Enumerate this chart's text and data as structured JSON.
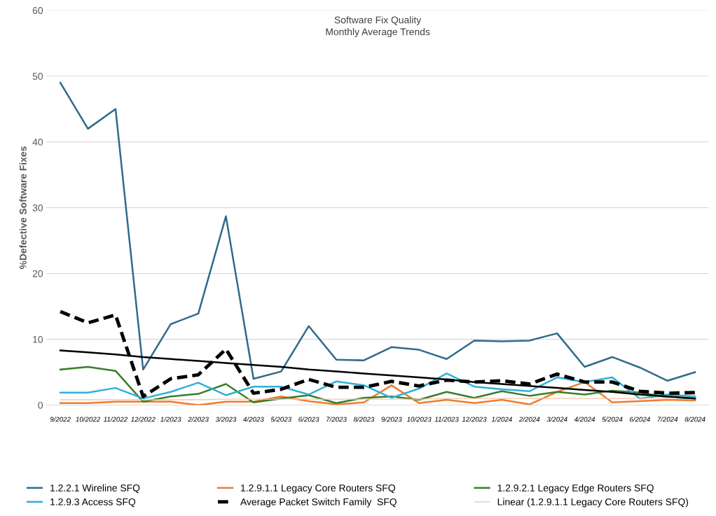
{
  "chart_data": {
    "type": "line",
    "title": "Software Fix Quality",
    "subtitle": "Monthly Average Trends",
    "ylabel": "%Defective Software Fixes",
    "categories": [
      "9/2022",
      "10/2022",
      "11/2022",
      "12/2022",
      "1/2023",
      "2/2023",
      "3/2023",
      "4/2023",
      "5/2023",
      "6/2023",
      "7/2023",
      "8/2023",
      "9/2023",
      "10/2023",
      "11/2023",
      "12/2023",
      "1/2024",
      "2/2024",
      "3/2024",
      "4/2024",
      "5/2024",
      "6/2024",
      "7/2024",
      "8/2024"
    ],
    "ylim": [
      0,
      60
    ],
    "yticks": [
      0,
      10,
      20,
      30,
      40,
      50,
      60
    ],
    "grid": "y",
    "legend": "bottom",
    "series": [
      {
        "name": "1.2.2.1 Wireline SFQ",
        "color": "#2e6b8a",
        "values": [
          49,
          42,
          45,
          5.4,
          12.3,
          13.9,
          28.7,
          4.0,
          5.1,
          12.0,
          6.9,
          6.8,
          8.8,
          8.4,
          7.0,
          9.8,
          9.7,
          9.8,
          10.9,
          5.8,
          7.3,
          5.7,
          3.7,
          5.0
        ]
      },
      {
        "name": "1.2.9.1.1 Legacy Core Routers SFQ",
        "color": "#ed7d31",
        "values": [
          0.3,
          0.3,
          0.5,
          0.5,
          0.5,
          0.0,
          0.5,
          0.5,
          1.3,
          0.6,
          0.1,
          0.4,
          3.0,
          0.3,
          0.8,
          0.3,
          0.8,
          0.1,
          2.0,
          3.5,
          0.4,
          0.6,
          0.8,
          0.7
        ]
      },
      {
        "name": "1.2.9.2.1 Legacy Edge Routers SFQ",
        "color": "#3a7d2c",
        "values": [
          5.4,
          5.8,
          5.2,
          0.5,
          1.3,
          1.7,
          3.2,
          0.4,
          1.0,
          1.5,
          0.3,
          1.1,
          1.3,
          0.8,
          2.0,
          1.1,
          2.1,
          1.4,
          2.0,
          1.6,
          2.2,
          1.9,
          1.2,
          1.0
        ]
      },
      {
        "name": "1.2.9.3 Access SFQ",
        "color": "#2fb0d9",
        "values": [
          1.9,
          1.9,
          2.6,
          1.0,
          2.0,
          3.4,
          1.5,
          2.8,
          2.8,
          1.6,
          3.6,
          3.0,
          1.1,
          2.5,
          4.8,
          2.8,
          2.4,
          2.1,
          4.2,
          3.5,
          4.2,
          1.0,
          1.6,
          1.3
        ]
      },
      {
        "name": "Average Packet Switch Family  SFQ",
        "color": "#000000",
        "line_style": "dashed",
        "values": [
          14.2,
          12.5,
          13.7,
          1.3,
          4.0,
          4.6,
          8.5,
          1.8,
          2.4,
          3.9,
          2.7,
          2.7,
          3.6,
          2.9,
          3.8,
          3.5,
          3.7,
          3.2,
          4.7,
          3.5,
          3.5,
          2.1,
          1.8,
          1.9
        ]
      },
      {
        "name": "Linear (1.2.9.1.1 Legacy Core Routers SFQ)",
        "color": "#f5c6a8",
        "values": [
          0.8,
          0.8,
          0.8,
          0.8,
          0.8,
          0.8,
          0.9,
          0.9,
          0.9,
          0.9,
          0.9,
          0.9,
          0.9,
          0.9,
          1.0,
          1.0,
          1.0,
          1.0,
          1.0,
          1.0,
          1.0,
          1.0,
          1.1,
          1.1
        ]
      },
      {
        "color": "#000000",
        "values": [
          8.3,
          8.0,
          7.7,
          7.3,
          7.0,
          6.7,
          6.4,
          6.1,
          5.8,
          5.4,
          5.1,
          4.8,
          4.5,
          4.2,
          3.9,
          3.5,
          3.2,
          2.9,
          2.6,
          2.3,
          2.0,
          1.6,
          1.3,
          1.0
        ]
      }
    ]
  }
}
